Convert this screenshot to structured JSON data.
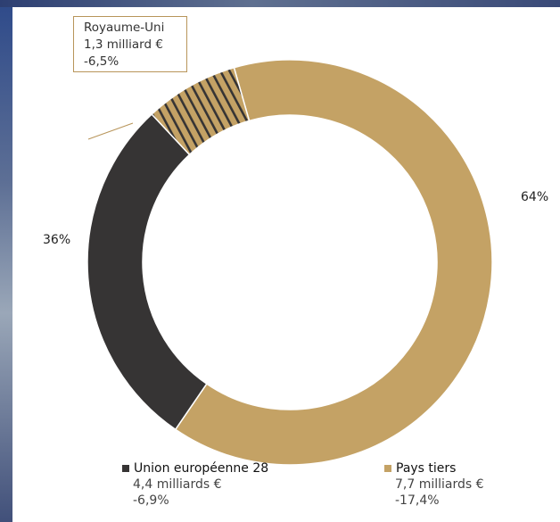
{
  "chart_data": {
    "type": "pie",
    "donut": true,
    "segments": [
      {
        "key": "pays_tiers",
        "value": 64,
        "percent_label": "64%",
        "color": "#c4a265"
      },
      {
        "key": "ue28",
        "value": 28.5,
        "color": "#363434"
      },
      {
        "key": "royaume_uni",
        "value": 7.5,
        "color": "#c4a265",
        "stripe_color": "#363434",
        "striped": true
      }
    ],
    "labels": {
      "ue_total_percent": "36%"
    },
    "callout": {
      "name": "Royaume-Uni",
      "amount": "1,3 milliard €",
      "change": "-6,5%"
    },
    "legend": [
      {
        "name": "Union européenne 28",
        "amount": "4,4 milliards €",
        "change": "-6,9%",
        "color": "#363434"
      },
      {
        "name": "Pays tiers",
        "amount": "7,7 milliards €",
        "change": "-17,4%",
        "color": "#c4a265"
      }
    ]
  }
}
